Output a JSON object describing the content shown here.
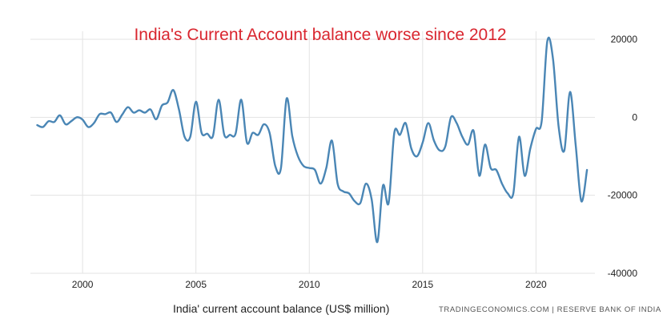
{
  "chart_data": {
    "type": "line",
    "title": "India's Current Account balance worse since 2012",
    "caption": "India' current account balance (US$ million)",
    "source": "TRADINGECONOMICS.COM | RESERVE BANK OF INDIA",
    "xlim": [
      1997.7,
      2022.6
    ],
    "ylim": [
      -40000,
      20000
    ],
    "x_ticks": [
      2000,
      2005,
      2010,
      2015,
      2020
    ],
    "y_ticks": [
      20000,
      0,
      -20000,
      -40000
    ],
    "y_tick_labels": [
      "20000",
      "0",
      "-20000",
      "-40000"
    ],
    "grid": true,
    "legend": "none",
    "colors": {
      "line": "#4a86b5",
      "title": "#d9262f",
      "grid": "#e3e3e3"
    },
    "series": [
      {
        "x": [
          1998.0,
          1998.25,
          1998.5,
          1998.75,
          1999.0,
          1999.25,
          1999.5,
          1999.75,
          2000.0,
          2000.25,
          2000.5,
          2000.75,
          2001.0,
          2001.25,
          2001.5,
          2001.75,
          2002.0,
          2002.25,
          2002.5,
          2002.75,
          2003.0,
          2003.25,
          2003.5,
          2003.75,
          2004.0,
          2004.25,
          2004.5,
          2004.75,
          2005.0,
          2005.25,
          2005.5,
          2005.75,
          2006.0,
          2006.25,
          2006.5,
          2006.75,
          2007.0,
          2007.25,
          2007.5,
          2007.75,
          2008.0,
          2008.25,
          2008.5,
          2008.75,
          2009.0,
          2009.25,
          2009.5,
          2009.75,
          2010.0,
          2010.25,
          2010.5,
          2010.75,
          2011.0,
          2011.25,
          2011.5,
          2011.75,
          2012.0,
          2012.25,
          2012.5,
          2012.75,
          2013.0,
          2013.25,
          2013.5,
          2013.75,
          2014.0,
          2014.25,
          2014.5,
          2014.75,
          2015.0,
          2015.25,
          2015.5,
          2015.75,
          2016.0,
          2016.25,
          2016.5,
          2016.75,
          2017.0,
          2017.25,
          2017.5,
          2017.75,
          2018.0,
          2018.25,
          2018.5,
          2018.75,
          2019.0,
          2019.25,
          2019.5,
          2019.75,
          2020.0,
          2020.25,
          2020.5,
          2020.75,
          2021.0,
          2021.25,
          2021.5,
          2021.75,
          2022.0,
          2022.25
        ],
        "values": [
          -2000,
          -2500,
          -1000,
          -1200,
          500,
          -1800,
          -1000,
          0,
          -600,
          -2500,
          -1500,
          800,
          800,
          1200,
          -1200,
          700,
          2600,
          1200,
          1800,
          1200,
          2000,
          -500,
          3000,
          3800,
          7000,
          2000,
          -5000,
          -5000,
          4000,
          -4000,
          -4200,
          -4800,
          4500,
          -4500,
          -4500,
          -4200,
          4500,
          -6500,
          -4000,
          -4500,
          -1800,
          -4000,
          -12500,
          -13000,
          4800,
          -4800,
          -10000,
          -12500,
          -13000,
          -13500,
          -17000,
          -13000,
          -6000,
          -17000,
          -19000,
          -19500,
          -21500,
          -22000,
          -17000,
          -21000,
          -32000,
          -17500,
          -22000,
          -4000,
          -4500,
          -1500,
          -8000,
          -10000,
          -6500,
          -1500,
          -6000,
          -8500,
          -7500,
          0,
          -1500,
          -5000,
          -7000,
          -3500,
          -15000,
          -7000,
          -13000,
          -13500,
          -17000,
          -19500,
          -19500,
          -5000,
          -15000,
          -8000,
          -3000,
          -1000,
          19500,
          15000,
          -2500,
          -8500,
          6500,
          -7000,
          -21500,
          -13500
        ]
      }
    ]
  }
}
